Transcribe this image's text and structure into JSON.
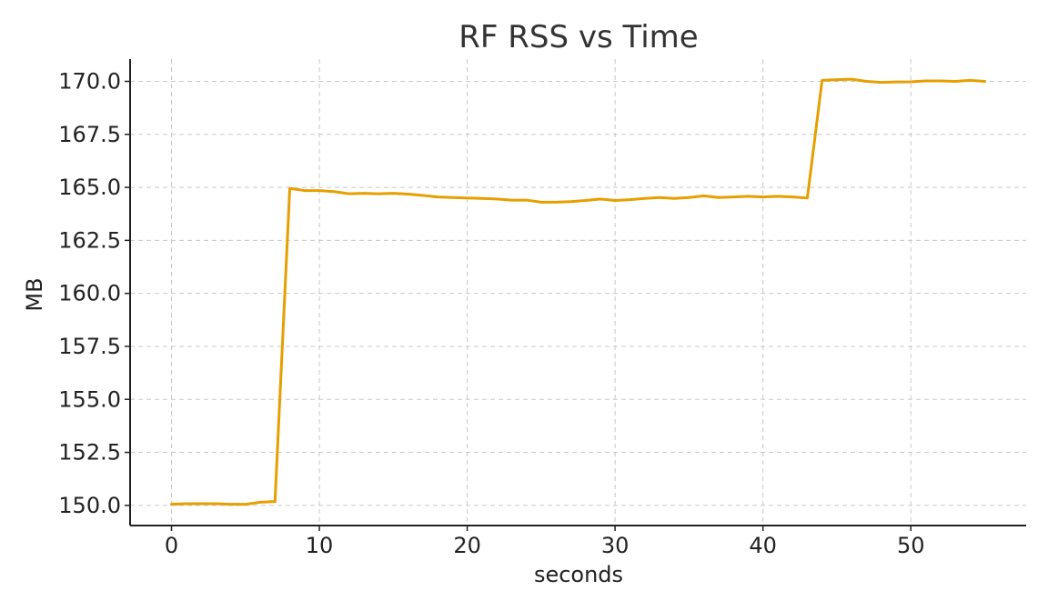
{
  "chart_data": {
    "type": "line",
    "title": "RF RSS vs Time",
    "xlabel": "seconds",
    "ylabel": "MB",
    "xlim": [
      -2.8,
      57.8
    ],
    "ylim": [
      149.05,
      171.05
    ],
    "x_ticks": [
      0,
      10,
      20,
      30,
      40,
      50
    ],
    "x_tick_labels": [
      "0",
      "10",
      "20",
      "30",
      "40",
      "50"
    ],
    "y_ticks": [
      150.0,
      152.5,
      155.0,
      157.5,
      160.0,
      162.5,
      165.0,
      167.5,
      170.0
    ],
    "y_tick_labels": [
      "150.0",
      "152.5",
      "155.0",
      "157.5",
      "160.0",
      "162.5",
      "165.0",
      "167.5",
      "170.0"
    ],
    "grid": true,
    "series": [
      {
        "color": "#e69f00",
        "x": [
          0,
          1,
          2,
          3,
          4,
          5,
          6,
          7,
          8,
          9,
          10,
          11,
          12,
          13,
          14,
          15,
          16,
          17,
          18,
          19,
          20,
          21,
          22,
          23,
          24,
          25,
          26,
          27,
          28,
          29,
          30,
          31,
          32,
          33,
          34,
          35,
          36,
          37,
          38,
          39,
          40,
          41,
          42,
          43,
          44,
          45,
          46,
          47,
          48,
          49,
          50,
          51,
          52,
          53,
          54,
          55
        ],
        "y": [
          150.05,
          150.08,
          150.08,
          150.08,
          150.05,
          150.05,
          150.15,
          150.18,
          164.95,
          164.85,
          164.85,
          164.8,
          164.7,
          164.72,
          164.7,
          164.72,
          164.68,
          164.62,
          164.55,
          164.52,
          164.5,
          164.48,
          164.45,
          164.4,
          164.4,
          164.3,
          164.3,
          164.33,
          164.38,
          164.45,
          164.38,
          164.42,
          164.48,
          164.52,
          164.48,
          164.52,
          164.6,
          164.52,
          164.55,
          164.58,
          164.55,
          164.58,
          164.55,
          164.5,
          170.05,
          170.08,
          170.1,
          170.0,
          169.95,
          169.97,
          169.98,
          170.02,
          170.02,
          170.0,
          170.05,
          170.0
        ]
      }
    ]
  }
}
